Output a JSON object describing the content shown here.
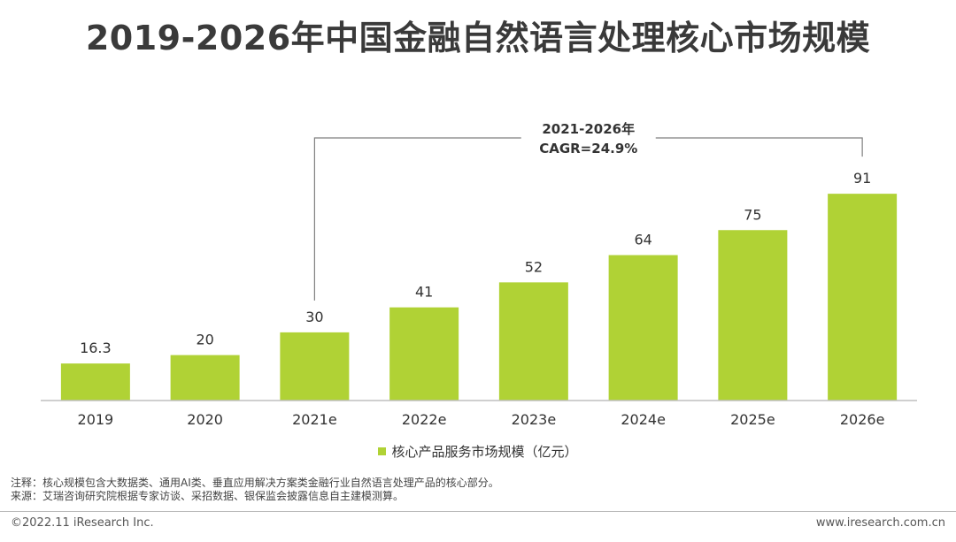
{
  "title": "2019-2026年中国金融自然语言处理核心市场规模",
  "chart_data": {
    "type": "bar",
    "categories": [
      "2019",
      "2020",
      "2021e",
      "2022e",
      "2023e",
      "2024e",
      "2025e",
      "2026e"
    ],
    "series": [
      {
        "name": "核心产品服务市场规模（亿元）",
        "values": [
          16.3,
          20,
          30,
          41,
          52,
          64,
          75,
          91
        ]
      }
    ],
    "ylim": [
      0,
      100
    ],
    "grid": false,
    "legend_position": "bottom",
    "annotation": {
      "line1": "2021-2026年",
      "line2": "CAGR=24.9%",
      "from_category": "2021e",
      "to_category": "2026e"
    },
    "colors": {
      "bar": "#b0d235",
      "axis": "#bfbfbf",
      "bracket": "#7f7f7f"
    }
  },
  "notes": {
    "note": "注释：核心规模包含大数据类、通用AI类、垂直应用解决方案类金融行业自然语言处理产品的核心部分。",
    "source": "来源：艾瑞咨询研究院根据专家访谈、采招数据、银保监会披露信息自主建模测算。"
  },
  "footer": {
    "copyright": "©2022.11 iResearch Inc.",
    "website": "www.iresearch.com.cn"
  }
}
